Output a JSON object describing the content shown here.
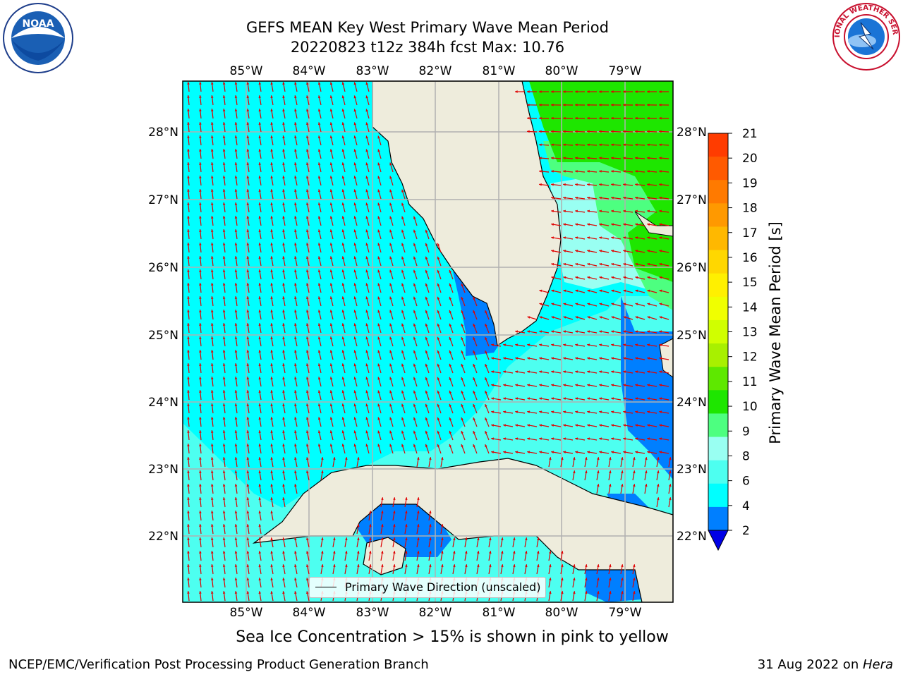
{
  "title": {
    "line1": "GEFS MEAN Key West Primary Wave Mean Period",
    "line2": "20220823 t12z 384h fcst   Max: 10.76"
  },
  "axes": {
    "lon_ticks": [
      "85°W",
      "84°W",
      "83°W",
      "82°W",
      "81°W",
      "80°W",
      "79°W"
    ],
    "lat_ticks": [
      "28°N",
      "27°N",
      "26°N",
      "25°N",
      "24°N",
      "23°N",
      "22°N"
    ]
  },
  "colorbar": {
    "label": "Primary Wave Mean Period [s]",
    "ticks": [
      "21",
      "20",
      "19",
      "18",
      "17",
      "16",
      "15",
      "14",
      "13",
      "12",
      "11",
      "10",
      "9",
      "8",
      "6",
      "4",
      "2"
    ],
    "colors": [
      "#ff1a00",
      "#ff3c00",
      "#ff5a00",
      "#ff7a00",
      "#ff9900",
      "#ffb800",
      "#ffd700",
      "#fff000",
      "#f0ff00",
      "#d0ff00",
      "#a8f000",
      "#5ee800",
      "#1ee600",
      "#4dff80",
      "#99fff2",
      "#4dfff0",
      "#00ffff",
      "#007fff",
      "#0000e6"
    ]
  },
  "legend": {
    "label": "Primary Wave Direction (unscaled)"
  },
  "note": "Sea Ice Concentration > 15% is shown in pink to yellow",
  "footer": {
    "left": "NCEP/EMC/Verification Post Processing Product Generation Branch",
    "right_prefix": "31 Aug 2022 on ",
    "right_host": "Hera"
  },
  "logos": {
    "noaa": "NOAA",
    "nws": "NATIONAL WEATHER SERVICE"
  }
}
